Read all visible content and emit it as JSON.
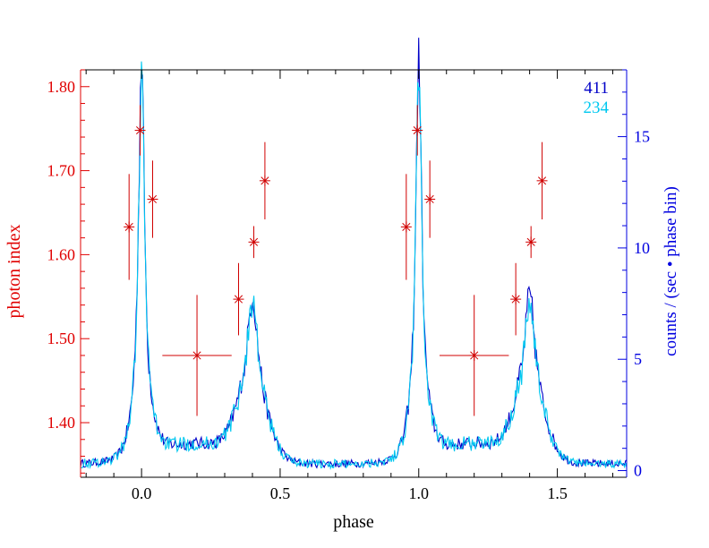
{
  "chart_data": {
    "type": "line",
    "title": "",
    "xlabel": "phase",
    "ylabel_left": "photon index",
    "ylabel_right": "counts / (sec • phase bin)",
    "xlim": [
      -0.22,
      1.75
    ],
    "ylim_left": [
      1.335,
      1.82
    ],
    "ylim_right": [
      -0.3,
      18.0
    ],
    "x_ticks": [
      0.0,
      0.5,
      1.0,
      1.5
    ],
    "x_tick_labels": [
      "0.0",
      "0.5",
      "1.0",
      "1.5"
    ],
    "y_left_ticks": [
      1.4,
      1.5,
      1.6,
      1.7,
      1.8
    ],
    "y_left_tick_labels": [
      "1.40",
      "1.50",
      "1.60",
      "1.70",
      "1.80"
    ],
    "y_right_ticks": [
      0,
      5,
      10,
      15
    ],
    "y_right_tick_labels": [
      "0",
      "5",
      "10",
      "15"
    ],
    "grid": false,
    "legend_position": "top-right",
    "colors": {
      "left_axis": "#e00000",
      "right_axis": "#0000e0",
      "frame": "#000000",
      "series_411": "#0000c8",
      "series_234": "#00c8f0",
      "points": "#d00000"
    },
    "series": [
      {
        "name": "411",
        "color": "#0000c8",
        "axis": "right",
        "profile": {
          "baseline": 0.25,
          "floor": 0.75,
          "peak1_height": 16.7,
          "peak1_width": 0.013,
          "peak1_pedestal": 1.6,
          "peak1_pedestal_width": 0.05,
          "peak2_center": 0.4,
          "peak2_height": 4.6,
          "peak2_width": 0.022,
          "peak2_pedestal": 3.0,
          "peak2_pedestal_width": 0.075,
          "bridge_level": 0.85,
          "noise": 0.25
        }
      },
      {
        "name": "234",
        "color": "#00c8f0",
        "axis": "right",
        "profile": {
          "baseline": 0.25,
          "floor": 0.75,
          "peak1_height": 16.2,
          "peak1_width": 0.013,
          "peak1_pedestal": 1.6,
          "peak1_pedestal_width": 0.05,
          "peak2_center": 0.4,
          "peak2_height": 4.4,
          "peak2_width": 0.022,
          "peak2_pedestal": 3.0,
          "peak2_pedestal_width": 0.075,
          "bridge_level": 0.85,
          "noise": 0.3
        }
      }
    ],
    "points": [
      {
        "x": -0.045,
        "y": 1.633,
        "xerr": 0.0,
        "yerr": 0.063
      },
      {
        "x": -0.005,
        "y": 1.748,
        "xerr": 0.0,
        "yerr": 0.03
      },
      {
        "x": 0.04,
        "y": 1.666,
        "xerr": 0.0,
        "yerr": 0.046
      },
      {
        "x": 0.2,
        "y": 1.48,
        "xerr": 0.125,
        "yerr": 0.072
      },
      {
        "x": 0.35,
        "y": 1.547,
        "xerr": 0.0,
        "yerr": 0.043
      },
      {
        "x": 0.405,
        "y": 1.615,
        "xerr": 0.0,
        "yerr": 0.019
      },
      {
        "x": 0.445,
        "y": 1.688,
        "xerr": 0.0,
        "yerr": 0.046
      },
      {
        "x": 0.955,
        "y": 1.633,
        "xerr": 0.0,
        "yerr": 0.063
      },
      {
        "x": 0.995,
        "y": 1.748,
        "xerr": 0.0,
        "yerr": 0.03
      },
      {
        "x": 1.04,
        "y": 1.666,
        "xerr": 0.0,
        "yerr": 0.046
      },
      {
        "x": 1.2,
        "y": 1.48,
        "xerr": 0.125,
        "yerr": 0.072
      },
      {
        "x": 1.35,
        "y": 1.547,
        "xerr": 0.0,
        "yerr": 0.043
      },
      {
        "x": 1.405,
        "y": 1.615,
        "xerr": 0.0,
        "yerr": 0.019
      },
      {
        "x": 1.445,
        "y": 1.688,
        "xerr": 0.0,
        "yerr": 0.046
      }
    ],
    "legend": [
      {
        "label": "411",
        "color": "#0000c8"
      },
      {
        "label": "234",
        "color": "#00c8f0"
      }
    ]
  }
}
